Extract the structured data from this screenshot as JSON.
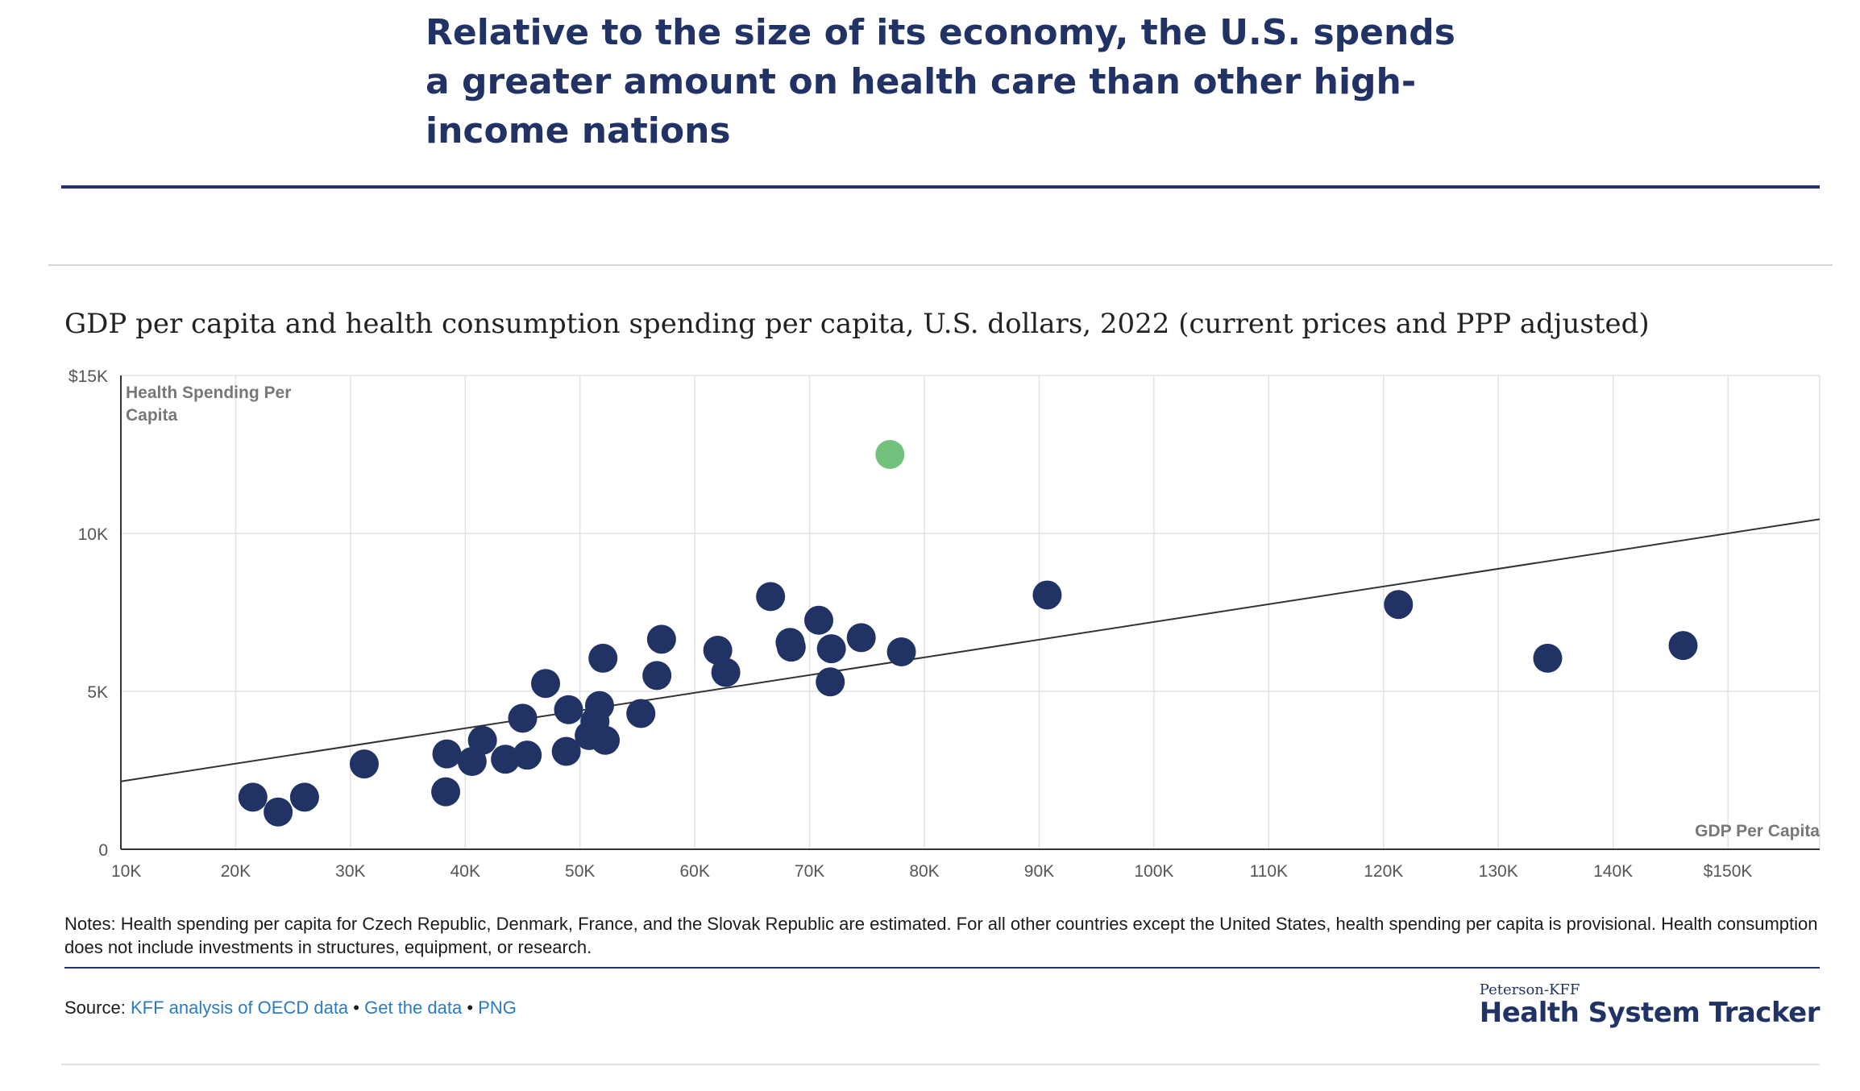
{
  "headline": "Relative to the size of its economy, the U.S. spends a greater amount on health care than other high-income nations",
  "chart_data": {
    "type": "scatter",
    "title": "GDP per capita and health consumption spending per capita, U.S. dollars, 2022 (current prices and PPP adjusted)",
    "xlabel": "GDP Per Capita",
    "ylabel": "Health Spending Per Capita",
    "xlim": [
      10000,
      158000
    ],
    "ylim": [
      0,
      15000
    ],
    "x_ticks": [
      10000,
      20000,
      30000,
      40000,
      50000,
      60000,
      70000,
      80000,
      90000,
      100000,
      110000,
      120000,
      130000,
      140000,
      150000
    ],
    "x_tick_labels": [
      "10K",
      "20K",
      "30K",
      "40K",
      "50K",
      "60K",
      "70K",
      "80K",
      "90K",
      "100K",
      "110K",
      "120K",
      "130K",
      "140K",
      "$150K"
    ],
    "y_ticks": [
      0,
      5000,
      10000,
      15000
    ],
    "y_tick_labels": [
      "0",
      "5K",
      "10K",
      "$15K"
    ],
    "grid": true,
    "trendline": {
      "x": [
        10000,
        158000
      ],
      "y": [
        2150,
        10450
      ]
    },
    "colors": {
      "default": "#213365",
      "highlight": "#72c17c",
      "trendline": "#333333"
    },
    "points": [
      {
        "x": 77000,
        "y": 12500,
        "highlight": true
      },
      {
        "x": 21500,
        "y": 1650
      },
      {
        "x": 23700,
        "y": 1180
      },
      {
        "x": 26000,
        "y": 1650
      },
      {
        "x": 31200,
        "y": 2700
      },
      {
        "x": 38300,
        "y": 1820
      },
      {
        "x": 38400,
        "y": 3020
      },
      {
        "x": 40600,
        "y": 2780
      },
      {
        "x": 41500,
        "y": 3450
      },
      {
        "x": 43500,
        "y": 2850
      },
      {
        "x": 45000,
        "y": 4150
      },
      {
        "x": 45400,
        "y": 2980
      },
      {
        "x": 47000,
        "y": 5250
      },
      {
        "x": 48800,
        "y": 3100
      },
      {
        "x": 49000,
        "y": 4420
      },
      {
        "x": 50800,
        "y": 3600
      },
      {
        "x": 51300,
        "y": 4050
      },
      {
        "x": 51700,
        "y": 4550
      },
      {
        "x": 52000,
        "y": 6050
      },
      {
        "x": 52200,
        "y": 3450
      },
      {
        "x": 55300,
        "y": 4300
      },
      {
        "x": 56700,
        "y": 5500
      },
      {
        "x": 57100,
        "y": 6650
      },
      {
        "x": 62000,
        "y": 6300
      },
      {
        "x": 62700,
        "y": 5600
      },
      {
        "x": 66600,
        "y": 8000
      },
      {
        "x": 68300,
        "y": 6550
      },
      {
        "x": 68400,
        "y": 6400
      },
      {
        "x": 70800,
        "y": 7250
      },
      {
        "x": 71800,
        "y": 5300
      },
      {
        "x": 71900,
        "y": 6350
      },
      {
        "x": 74500,
        "y": 6700
      },
      {
        "x": 78000,
        "y": 6250
      },
      {
        "x": 90700,
        "y": 8050
      },
      {
        "x": 121300,
        "y": 7750
      },
      {
        "x": 134300,
        "y": 6050
      },
      {
        "x": 146100,
        "y": 6450
      }
    ]
  },
  "notes": "Notes: Health spending per capita for Czech Republic, Denmark, France, and the Slovak Republic are estimated. For all other countries except the United States, health spending per capita is provisional. Health consumption does not include investments in structures, equipment, or research.",
  "source": {
    "label": "Source:",
    "link1": "KFF analysis of OECD data",
    "sep": "•",
    "link2": "Get the data",
    "link3": "PNG"
  },
  "brand": {
    "top": "Peterson-KFF",
    "main": "Health System Tracker"
  }
}
